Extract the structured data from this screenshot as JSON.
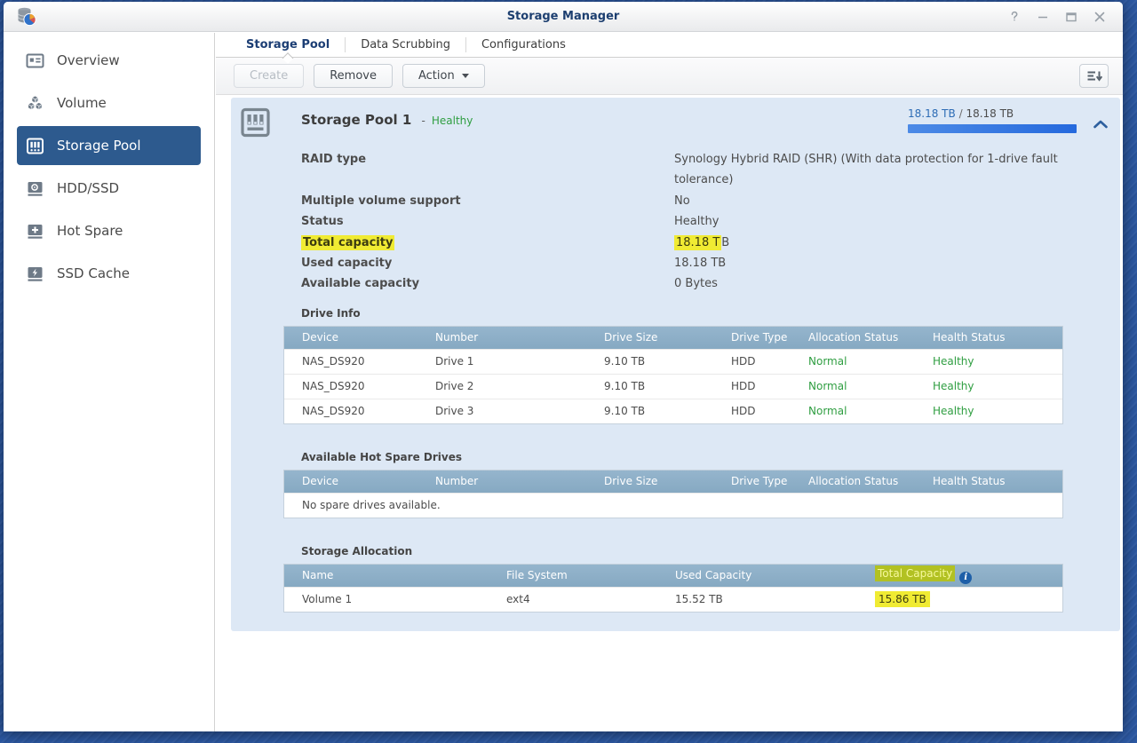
{
  "window": {
    "title": "Storage Manager"
  },
  "sidebar": {
    "items": [
      {
        "label": "Overview",
        "selected": false
      },
      {
        "label": "Volume",
        "selected": false
      },
      {
        "label": "Storage Pool",
        "selected": true
      },
      {
        "label": "HDD/SSD",
        "selected": false
      },
      {
        "label": "Hot Spare",
        "selected": false
      },
      {
        "label": "SSD Cache",
        "selected": false
      }
    ]
  },
  "tabs": {
    "items": [
      {
        "label": "Storage Pool",
        "active": true
      },
      {
        "label": "Data Scrubbing",
        "active": false
      },
      {
        "label": "Configurations",
        "active": false
      }
    ]
  },
  "toolbar": {
    "create_label": "Create",
    "remove_label": "Remove",
    "action_label": "Action"
  },
  "pool": {
    "title": "Storage Pool 1",
    "status_prefix": "-",
    "status": "Healthy",
    "capacity_used": "18.18 TB",
    "capacity_separator": "/",
    "capacity_total": "18.18 TB",
    "capacity_percent": 100,
    "details": {
      "raid_type": {
        "label": "RAID type",
        "value": "Synology Hybrid RAID (SHR) (With data protection for 1-drive fault tolerance)"
      },
      "multi_volume": {
        "label": "Multiple volume support",
        "value": "No"
      },
      "status": {
        "label": "Status",
        "value": "Healthy"
      },
      "total_capacity": {
        "label": "Total capacity",
        "value_highlighted": "18.18 T",
        "value_rest": "B"
      },
      "used_capacity": {
        "label": "Used capacity",
        "value": "18.18 TB"
      },
      "available_capacity": {
        "label": "Available capacity",
        "value": "0 Bytes"
      }
    },
    "drive_info": {
      "title": "Drive Info",
      "columns": [
        "Device",
        "Number",
        "Drive Size",
        "Drive Type",
        "Allocation Status",
        "Health Status"
      ],
      "rows": [
        {
          "device": "NAS_DS920",
          "number": "Drive 1",
          "size": "9.10 TB",
          "type": "HDD",
          "allocation": "Normal",
          "health": "Healthy"
        },
        {
          "device": "NAS_DS920",
          "number": "Drive 2",
          "size": "9.10 TB",
          "type": "HDD",
          "allocation": "Normal",
          "health": "Healthy"
        },
        {
          "device": "NAS_DS920",
          "number": "Drive 3",
          "size": "9.10 TB",
          "type": "HDD",
          "allocation": "Normal",
          "health": "Healthy"
        }
      ]
    },
    "hot_spare": {
      "title": "Available Hot Spare Drives",
      "columns": [
        "Device",
        "Number",
        "Drive Size",
        "Drive Type",
        "Allocation Status",
        "Health Status"
      ],
      "empty_text": "No spare drives available."
    },
    "storage_allocation": {
      "title": "Storage Allocation",
      "columns": [
        "Name",
        "File System",
        "Used Capacity",
        "Total Capacity"
      ],
      "rows": [
        {
          "name": "Volume 1",
          "file_system": "ext4",
          "used": "15.52 TB",
          "total": "15.86 TB"
        }
      ]
    }
  },
  "colors": {
    "highlight_yellow": "#f0eb33",
    "status_green": "#2f9e41",
    "accent_blue": "#2d6cb5",
    "table_header_blue": "#8badc7",
    "nav_selected_blue": "#2d5a8e"
  }
}
